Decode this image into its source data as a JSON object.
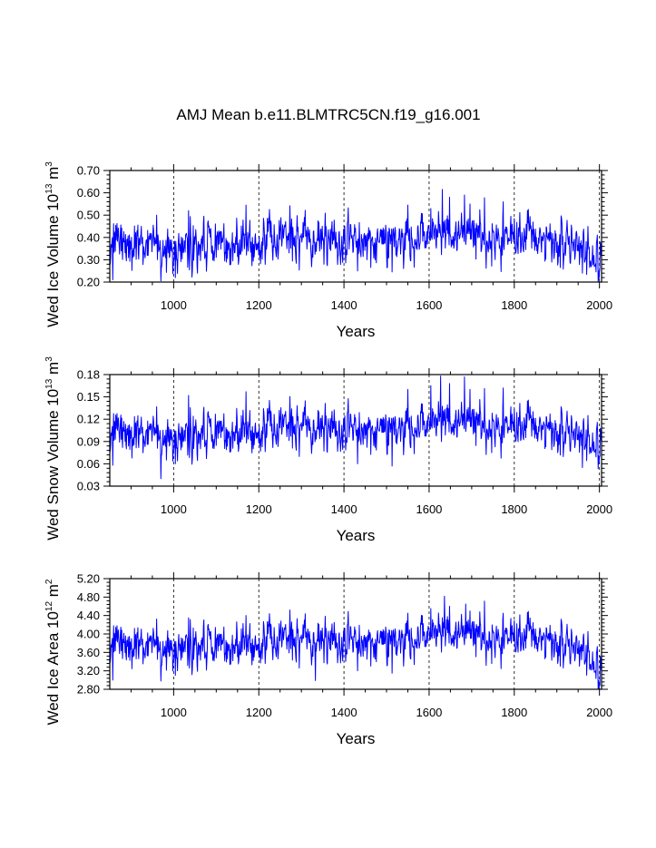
{
  "title": "AMJ Mean b.e11.BLMTRC5CN.f19_g16.001",
  "colors": {
    "series": "#0000ff",
    "axis": "#000000",
    "grid": "#000000",
    "background": "#ffffff"
  },
  "chart_data": [
    {
      "type": "line",
      "title": "AMJ Mean b.e11.BLMTRC5CN.f19_g16.001",
      "xlabel": "Years",
      "ylabel": {
        "main": "Wed Ice Volume 10",
        "exp": "13",
        "unit": " m",
        "unit_exp": "3"
      },
      "xlim": [
        850,
        2005
      ],
      "ylim": [
        0.2,
        0.7
      ],
      "xticks": [
        1000,
        1200,
        1400,
        1600,
        1800,
        2000
      ],
      "xtick_labels": [
        "1000",
        "1200",
        "1400",
        "1600",
        "1800",
        "2000"
      ],
      "yticks": [
        0.2,
        0.3,
        0.4,
        0.5,
        0.6,
        0.7
      ],
      "ytick_labels": [
        "0.20",
        "0.30",
        "0.40",
        "0.50",
        "0.60",
        "0.70"
      ],
      "grid_x": true,
      "series": [
        {
          "name": "Wed Ice Volume",
          "x": [
            850,
            2005
          ],
          "values": [
            0.38,
            0.28
          ]
        }
      ]
    },
    {
      "type": "line",
      "xlabel": "Years",
      "ylabel": {
        "main": "Wed Snow Volume 10",
        "exp": "13",
        "unit": " m",
        "unit_exp": "3"
      },
      "xlim": [
        850,
        2005
      ],
      "ylim": [
        0.03,
        0.18
      ],
      "xticks": [
        1000,
        1200,
        1400,
        1600,
        1800,
        2000
      ],
      "xtick_labels": [
        "1000",
        "1200",
        "1400",
        "1600",
        "1800",
        "2000"
      ],
      "yticks": [
        0.03,
        0.06,
        0.09,
        0.12,
        0.15,
        0.18
      ],
      "ytick_labels": [
        "0.03",
        "0.06",
        "0.09",
        "0.12",
        "0.15",
        "0.18"
      ],
      "grid_x": true,
      "series": [
        {
          "name": "Wed Snow Volume",
          "x": [
            850,
            2005
          ],
          "values": [
            0.105,
            0.08
          ]
        }
      ]
    },
    {
      "type": "line",
      "xlabel": "Years",
      "ylabel": {
        "main": "Wed Ice Area 10",
        "exp": "12",
        "unit": " m",
        "unit_exp": "2"
      },
      "xlim": [
        850,
        2005
      ],
      "ylim": [
        2.8,
        5.2
      ],
      "xticks": [
        1000,
        1200,
        1400,
        1600,
        1800,
        2000
      ],
      "xtick_labels": [
        "1000",
        "1200",
        "1400",
        "1600",
        "1800",
        "2000"
      ],
      "yticks": [
        2.8,
        3.2,
        3.6,
        4.0,
        4.4,
        4.8,
        5.2
      ],
      "ytick_labels": [
        "2.80",
        "3.20",
        "3.60",
        "4.00",
        "4.40",
        "4.80",
        "5.20"
      ],
      "grid_x": true,
      "series": [
        {
          "name": "Wed Ice Area",
          "x": [
            850,
            2005
          ],
          "values": [
            3.8,
            3.0
          ]
        }
      ]
    }
  ],
  "series_profiles": [
    {
      "anchors": [
        [
          850,
          0.38
        ],
        [
          900,
          0.36
        ],
        [
          950,
          0.355
        ],
        [
          1000,
          0.36
        ],
        [
          1050,
          0.36
        ],
        [
          1100,
          0.365
        ],
        [
          1150,
          0.37
        ],
        [
          1200,
          0.375
        ],
        [
          1250,
          0.38
        ],
        [
          1300,
          0.39
        ],
        [
          1350,
          0.39
        ],
        [
          1400,
          0.38
        ],
        [
          1450,
          0.375
        ],
        [
          1500,
          0.38
        ],
        [
          1550,
          0.385
        ],
        [
          1600,
          0.41
        ],
        [
          1650,
          0.42
        ],
        [
          1700,
          0.41
        ],
        [
          1750,
          0.39
        ],
        [
          1800,
          0.4
        ],
        [
          1850,
          0.39
        ],
        [
          1900,
          0.38
        ],
        [
          1950,
          0.36
        ],
        [
          2005,
          0.28
        ]
      ],
      "noise": 0.05,
      "spikes": [
        [
          857,
          0.21
        ],
        [
          970,
          0.205
        ],
        [
          1004,
          0.22
        ],
        [
          1035,
          0.52
        ],
        [
          1170,
          0.545
        ],
        [
          1432,
          0.25
        ],
        [
          1513,
          0.245
        ],
        [
          1550,
          0.545
        ],
        [
          1604,
          0.53
        ],
        [
          1631,
          0.615
        ],
        [
          1648,
          0.58
        ],
        [
          1683,
          0.59
        ],
        [
          1696,
          0.55
        ],
        [
          1774,
          0.56
        ],
        [
          1960,
          0.24
        ],
        [
          2001,
          0.265
        ]
      ]
    },
    {
      "anchors": [
        [
          850,
          0.105
        ],
        [
          900,
          0.098
        ],
        [
          950,
          0.096
        ],
        [
          1000,
          0.098
        ],
        [
          1050,
          0.098
        ],
        [
          1100,
          0.1
        ],
        [
          1150,
          0.102
        ],
        [
          1200,
          0.103
        ],
        [
          1250,
          0.105
        ],
        [
          1300,
          0.108
        ],
        [
          1350,
          0.108
        ],
        [
          1400,
          0.105
        ],
        [
          1450,
          0.103
        ],
        [
          1500,
          0.105
        ],
        [
          1550,
          0.107
        ],
        [
          1600,
          0.113
        ],
        [
          1650,
          0.118
        ],
        [
          1700,
          0.115
        ],
        [
          1750,
          0.108
        ],
        [
          1800,
          0.11
        ],
        [
          1850,
          0.108
        ],
        [
          1900,
          0.104
        ],
        [
          1950,
          0.098
        ],
        [
          2005,
          0.08
        ]
      ],
      "noise": 0.014,
      "spikes": [
        [
          857,
          0.058
        ],
        [
          970,
          0.04
        ],
        [
          1004,
          0.06
        ],
        [
          1035,
          0.152
        ],
        [
          1170,
          0.157
        ],
        [
          1432,
          0.06
        ],
        [
          1513,
          0.057
        ],
        [
          1550,
          0.16
        ],
        [
          1604,
          0.165
        ],
        [
          1627,
          0.178
        ],
        [
          1648,
          0.168
        ],
        [
          1683,
          0.177
        ],
        [
          1696,
          0.16
        ],
        [
          1774,
          0.162
        ],
        [
          1960,
          0.055
        ],
        [
          2001,
          0.07
        ]
      ]
    },
    {
      "anchors": [
        [
          850,
          3.82
        ],
        [
          900,
          3.72
        ],
        [
          950,
          3.68
        ],
        [
          1000,
          3.74
        ],
        [
          1050,
          3.72
        ],
        [
          1100,
          3.72
        ],
        [
          1150,
          3.75
        ],
        [
          1200,
          3.78
        ],
        [
          1250,
          3.8
        ],
        [
          1300,
          3.86
        ],
        [
          1350,
          3.86
        ],
        [
          1400,
          3.82
        ],
        [
          1450,
          3.78
        ],
        [
          1500,
          3.82
        ],
        [
          1550,
          3.85
        ],
        [
          1600,
          3.98
        ],
        [
          1650,
          4.04
        ],
        [
          1700,
          3.98
        ],
        [
          1750,
          3.88
        ],
        [
          1800,
          3.92
        ],
        [
          1850,
          3.9
        ],
        [
          1900,
          3.82
        ],
        [
          1950,
          3.66
        ],
        [
          1975,
          3.5
        ],
        [
          1990,
          3.3
        ],
        [
          2005,
          3.05
        ]
      ],
      "noise": 0.22,
      "spikes": [
        [
          857,
          3.0
        ],
        [
          970,
          2.98
        ],
        [
          1004,
          3.1
        ],
        [
          1035,
          4.35
        ],
        [
          1170,
          4.4
        ],
        [
          1333,
          2.99
        ],
        [
          1432,
          3.2
        ],
        [
          1513,
          3.15
        ],
        [
          1550,
          4.45
        ],
        [
          1604,
          4.55
        ],
        [
          1636,
          4.82
        ],
        [
          1648,
          4.6
        ],
        [
          1686,
          4.65
        ],
        [
          1696,
          4.5
        ],
        [
          1774,
          4.45
        ],
        [
          2001,
          2.88
        ]
      ]
    }
  ]
}
